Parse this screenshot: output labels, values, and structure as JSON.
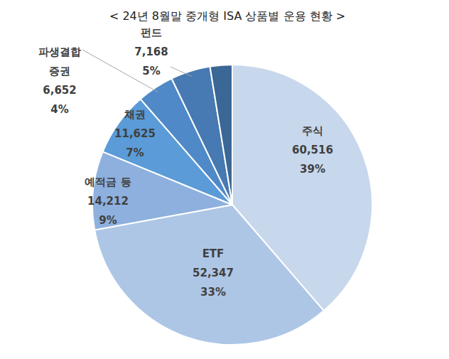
{
  "chart_data": {
    "type": "pie",
    "title": "< 24년 8월말 중개형 ISA 상품별 운용 현황 >",
    "categories": [
      "주식",
      "ETF",
      "예적금 등",
      "채권",
      "파생결합\n증권",
      "펀드",
      null
    ],
    "values": [
      60516,
      52347,
      14212,
      11625,
      6652,
      7168,
      4000
    ],
    "value_labels": [
      "60,516",
      "52,347",
      "14,212",
      "11,625",
      "6,652",
      "7,168",
      null
    ],
    "percent_labels": [
      "39%",
      "33%",
      "9%",
      "7%",
      "4%",
      "5%",
      null
    ],
    "colors": [
      "#c7d7ec",
      "#aec6e6",
      "#8eb0de",
      "#5a9bd8",
      "#4f89c8",
      "#4779b2",
      "#3a6795"
    ],
    "data_labels": true
  }
}
